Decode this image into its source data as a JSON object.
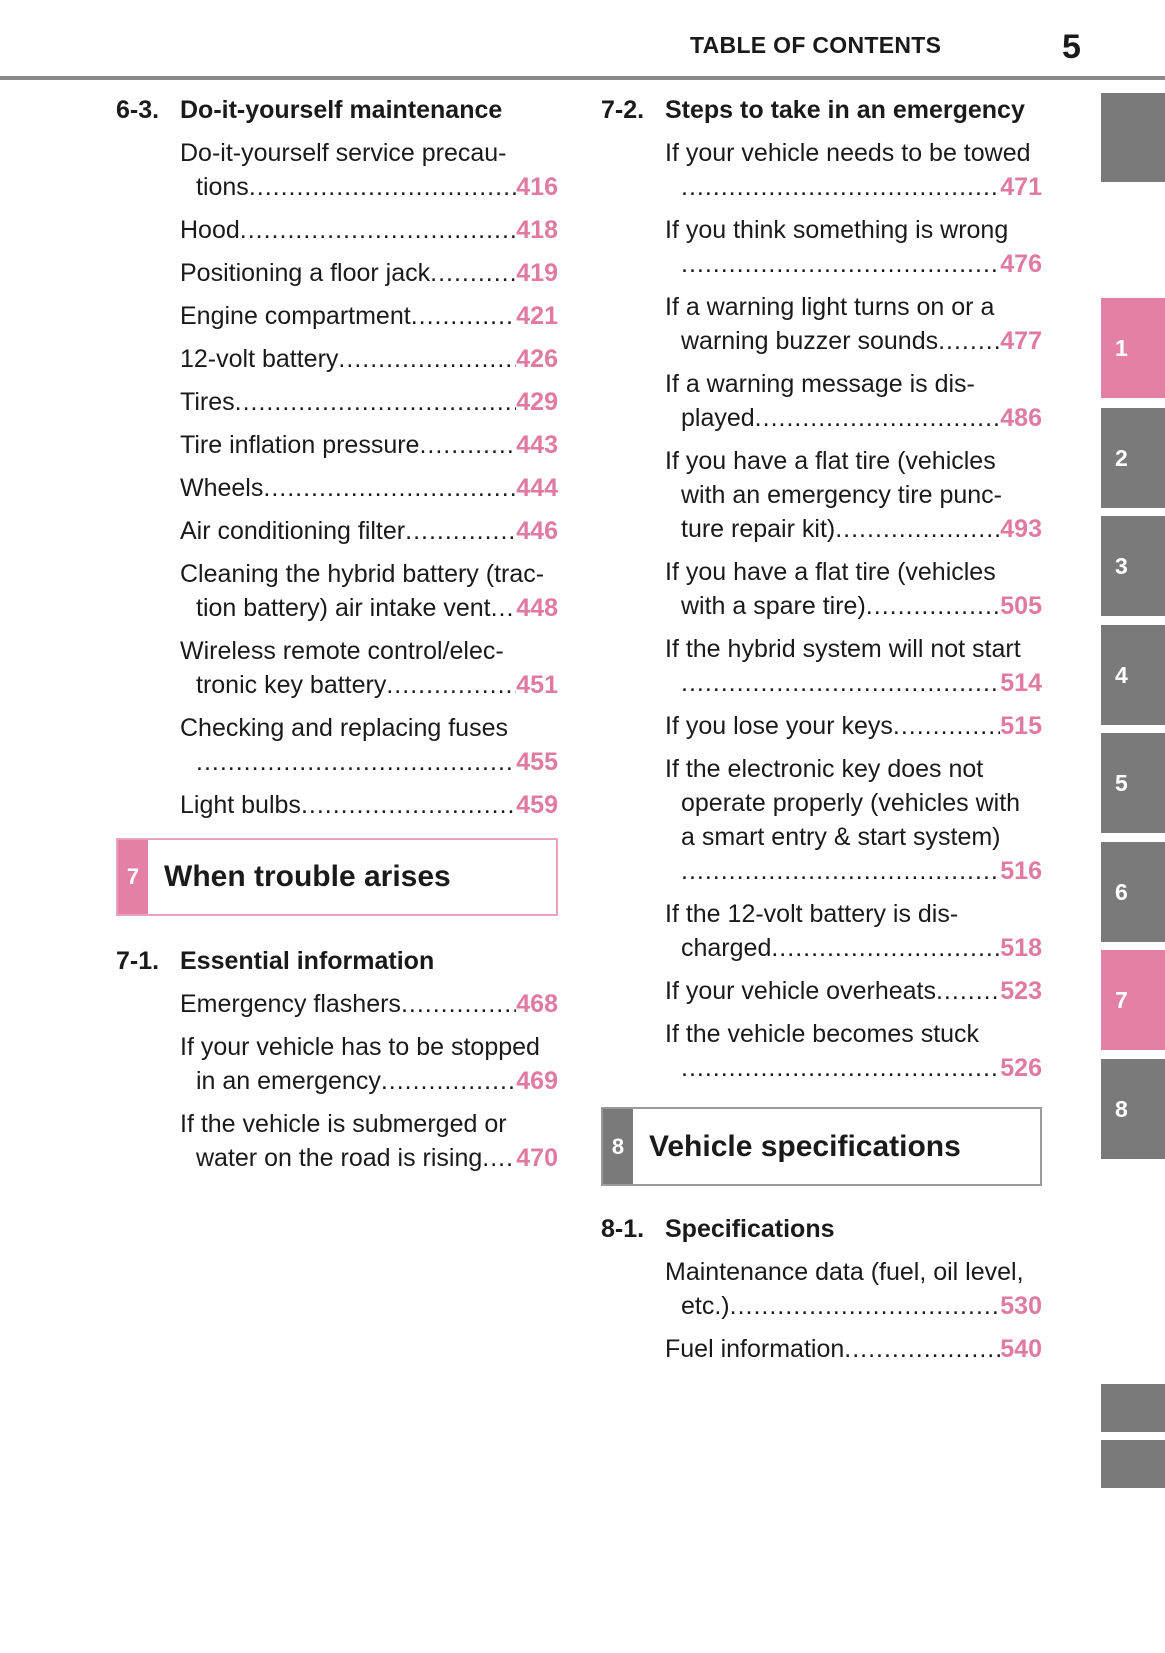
{
  "header": {
    "title": "TABLE OF CONTENTS",
    "page_number": "5"
  },
  "colors": {
    "accent_pink": "#e47fa6",
    "tab_gray": "#7a7a7a",
    "page_number": "#e07aa3"
  },
  "left_sections": [
    {
      "number": "6-3.",
      "title": "Do-it-yourself maintenance",
      "entries": [
        {
          "lines": [
            "Do-it-yourself service precau-",
            "tions"
          ],
          "page": "416"
        },
        {
          "lines": [
            "Hood"
          ],
          "page": "418"
        },
        {
          "lines": [
            "Positioning a floor jack"
          ],
          "page": "419"
        },
        {
          "lines": [
            "Engine compartment"
          ],
          "page": "421"
        },
        {
          "lines": [
            "12-volt battery"
          ],
          "page": "426"
        },
        {
          "lines": [
            "Tires"
          ],
          "page": "429"
        },
        {
          "lines": [
            "Tire inflation pressure"
          ],
          "page": "443"
        },
        {
          "lines": [
            "Wheels"
          ],
          "page": "444"
        },
        {
          "lines": [
            "Air conditioning filter"
          ],
          "page": "446"
        },
        {
          "lines": [
            "Cleaning the hybrid battery (trac-",
            "tion battery) air intake vent"
          ],
          "page": "448"
        },
        {
          "lines": [
            "Wireless remote control/elec-",
            "tronic key battery"
          ],
          "page": "451"
        },
        {
          "lines": [
            "Checking and replacing fuses",
            ""
          ],
          "page": "455"
        },
        {
          "lines": [
            "Light bulbs"
          ],
          "page": "459"
        }
      ]
    }
  ],
  "chapter7": {
    "number": "7",
    "title": "When trouble arises"
  },
  "left_sections2": [
    {
      "number": "7-1.",
      "title": "Essential information",
      "entries": [
        {
          "lines": [
            "Emergency flashers"
          ],
          "page": "468"
        },
        {
          "lines": [
            "If your vehicle has to be stopped",
            "in an emergency"
          ],
          "page": "469"
        },
        {
          "lines": [
            "If the vehicle is submerged or",
            "water on the road is rising"
          ],
          "page": "470"
        }
      ]
    }
  ],
  "right_sections": [
    {
      "number": "7-2.",
      "title": "Steps to take in an emergency",
      "entries": [
        {
          "lines": [
            "If your vehicle needs to be towed",
            ""
          ],
          "page": "471"
        },
        {
          "lines": [
            "If you think something is wrong",
            ""
          ],
          "page": "476"
        },
        {
          "lines": [
            "If a warning light turns on or a",
            "warning buzzer sounds"
          ],
          "page": "477"
        },
        {
          "lines": [
            "If a warning message is dis-",
            "played"
          ],
          "page": "486"
        },
        {
          "lines": [
            "If you have a flat tire (vehicles",
            "with an emergency tire punc-",
            "ture repair kit)"
          ],
          "page": "493"
        },
        {
          "lines": [
            "If you have a flat tire (vehicles",
            "with a spare tire)"
          ],
          "page": "505"
        },
        {
          "lines": [
            "If the hybrid system will not start",
            ""
          ],
          "page": "514"
        },
        {
          "lines": [
            "If you lose your keys"
          ],
          "page": "515"
        },
        {
          "lines": [
            "If the electronic key does not",
            "operate properly (vehicles with",
            "a smart entry & start system)",
            ""
          ],
          "page": "516"
        },
        {
          "lines": [
            "If the 12-volt battery is dis-",
            "charged"
          ],
          "page": "518"
        },
        {
          "lines": [
            "If your vehicle overheats"
          ],
          "page": "523"
        },
        {
          "lines": [
            "If the vehicle becomes stuck",
            ""
          ],
          "page": "526"
        }
      ]
    }
  ],
  "chapter8": {
    "number": "8",
    "title": "Vehicle specifications"
  },
  "right_sections2": [
    {
      "number": "8-1.",
      "title": "Specifications",
      "entries": [
        {
          "lines": [
            "Maintenance data (fuel, oil level,",
            "etc.)"
          ],
          "page": "530"
        },
        {
          "lines": [
            "Fuel information"
          ],
          "page": "540"
        }
      ]
    }
  ],
  "side_tabs": [
    {
      "label": "",
      "color": "gray"
    },
    {
      "label": "1",
      "color": "pink"
    },
    {
      "label": "2",
      "color": "gray"
    },
    {
      "label": "3",
      "color": "gray"
    },
    {
      "label": "4",
      "color": "gray"
    },
    {
      "label": "5",
      "color": "gray"
    },
    {
      "label": "6",
      "color": "gray"
    },
    {
      "label": "7",
      "color": "pink"
    },
    {
      "label": "8",
      "color": "gray"
    },
    {
      "label": "",
      "color": "gray"
    },
    {
      "label": "",
      "color": "gray"
    }
  ]
}
